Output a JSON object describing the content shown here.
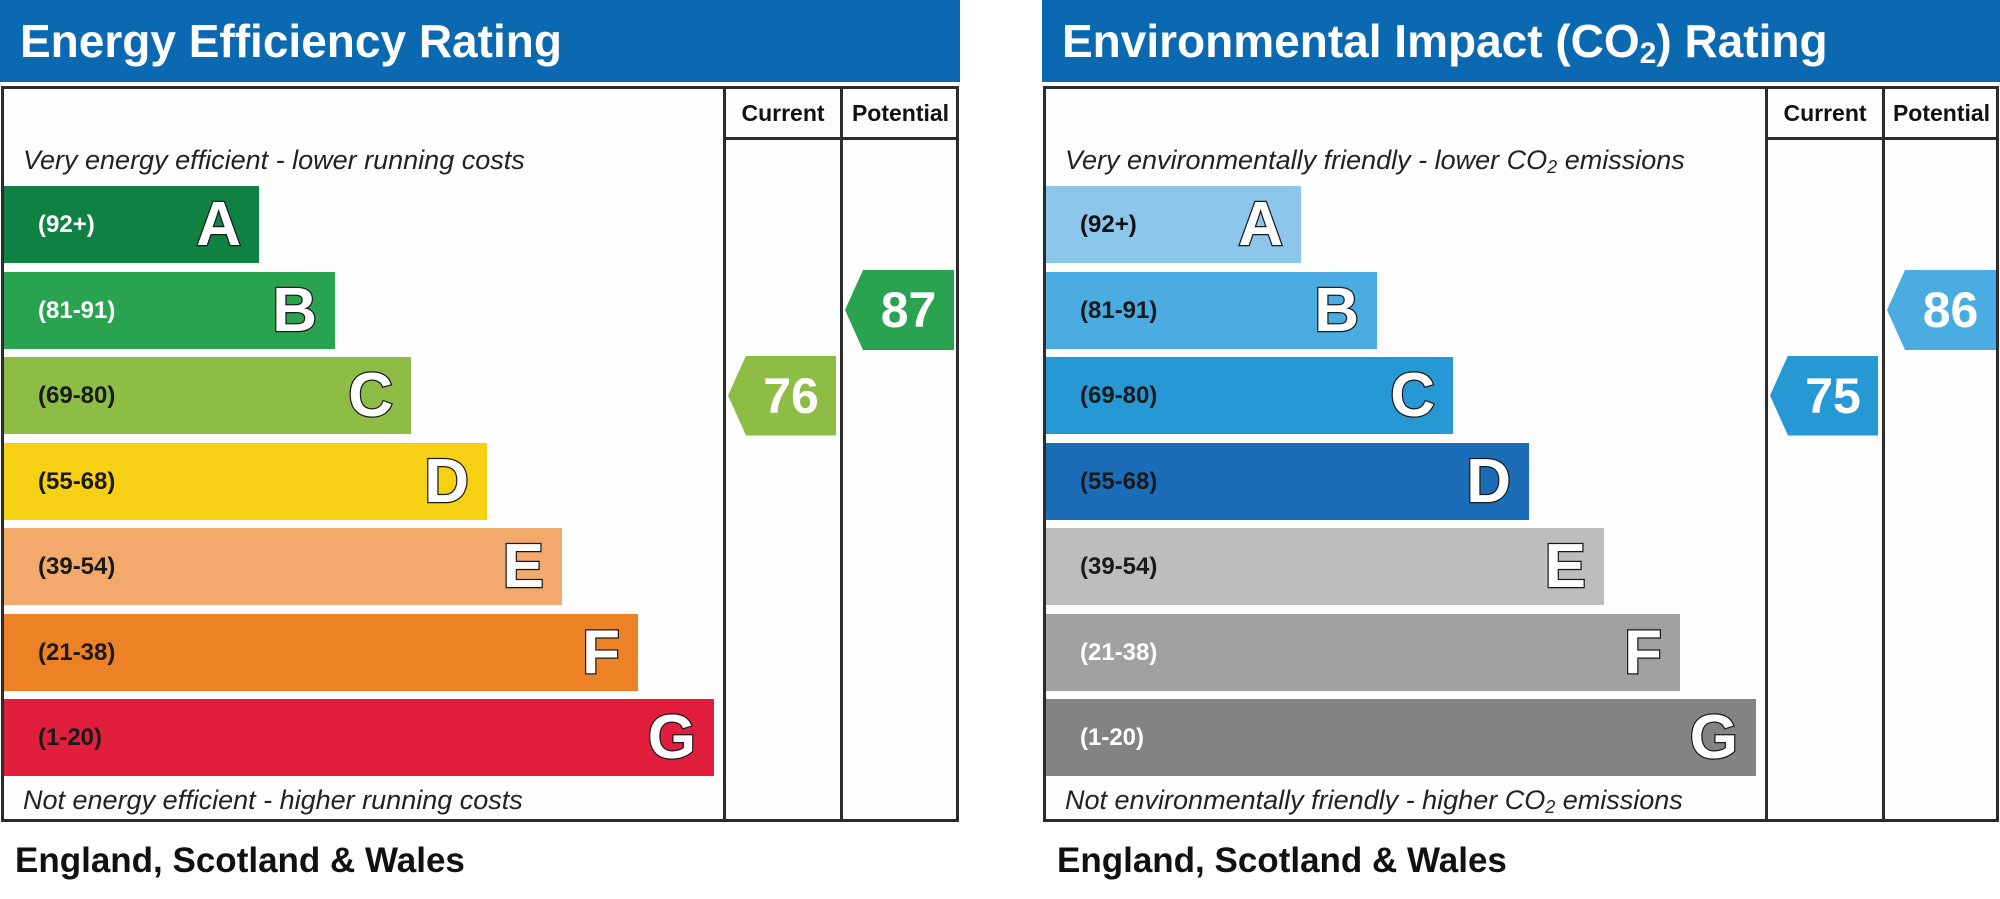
{
  "chart_data": [
    {
      "type": "bar",
      "title": "Energy Efficiency Rating",
      "column_headers": [
        "Current",
        "Potential"
      ],
      "top_caption": "Very energy efficient - lower running costs",
      "bottom_caption": "Not energy efficient - higher running costs",
      "region": "England, Scotland & Wales",
      "bands": [
        {
          "letter": "A",
          "range": "(92+)",
          "min": 92,
          "max": 100,
          "color": "#0f8142",
          "text_color": "#ffffff"
        },
        {
          "letter": "B",
          "range": "(81-91)",
          "min": 81,
          "max": 91,
          "color": "#2aa350",
          "text_color": "#ffffff"
        },
        {
          "letter": "C",
          "range": "(69-80)",
          "min": 69,
          "max": 80,
          "color": "#8dbd45",
          "text_color": "#1a1a1a"
        },
        {
          "letter": "D",
          "range": "(55-68)",
          "min": 55,
          "max": 68,
          "color": "#f6d012",
          "text_color": "#1a1a1a"
        },
        {
          "letter": "E",
          "range": "(39-54)",
          "min": 39,
          "max": 54,
          "color": "#f2a96b",
          "text_color": "#1a1a1a"
        },
        {
          "letter": "F",
          "range": "(21-38)",
          "min": 21,
          "max": 38,
          "color": "#ec8225",
          "text_color": "#1a1a1a"
        },
        {
          "letter": "G",
          "range": "(1-20)",
          "min": 1,
          "max": 20,
          "color": "#e11f3d",
          "text_color": "#1a1a1a"
        }
      ],
      "current": {
        "value": 76,
        "band": "C",
        "color": "#8dbd45"
      },
      "potential": {
        "value": 87,
        "band": "B",
        "color": "#2aa350"
      }
    },
    {
      "type": "bar",
      "title_main": "Environmental Impact (CO",
      "title_sub": "2",
      "title_end": ") Rating",
      "column_headers": [
        "Current",
        "Potential"
      ],
      "top_caption_main": "Very environmentally friendly - lower CO",
      "top_caption_sub": "2",
      "top_caption_end": " emissions",
      "bottom_caption_main": "Not environmentally friendly - higher CO",
      "bottom_caption_sub": "2",
      "bottom_caption_end": " emissions",
      "region": "England, Scotland & Wales",
      "bands": [
        {
          "letter": "A",
          "range": "(92+)",
          "min": 92,
          "max": 100,
          "color": "#8cc6eb",
          "text_color": "#111111"
        },
        {
          "letter": "B",
          "range": "(81-91)",
          "min": 81,
          "max": 91,
          "color": "#4aace0",
          "text_color": "#1a1a1a"
        },
        {
          "letter": "C",
          "range": "(69-80)",
          "min": 69,
          "max": 80,
          "color": "#2699d4",
          "text_color": "#1a1a1a"
        },
        {
          "letter": "D",
          "range": "(55-68)",
          "min": 55,
          "max": 68,
          "color": "#1a6db6",
          "text_color": "#1a1a1a"
        },
        {
          "letter": "E",
          "range": "(39-54)",
          "min": 39,
          "max": 54,
          "color": "#bdbdbb",
          "text_color": "#1a1a1a"
        },
        {
          "letter": "F",
          "range": "(21-38)",
          "min": 21,
          "max": 38,
          "color": "#a1a1a1",
          "text_color": "#ffffff"
        },
        {
          "letter": "G",
          "range": "(1-20)",
          "min": 1,
          "max": 20,
          "color": "#838383",
          "text_color": "#ffffff"
        }
      ],
      "current": {
        "value": 75,
        "band": "C",
        "color": "#2699d4"
      },
      "potential": {
        "value": 86,
        "band": "B",
        "color": "#4aace0"
      }
    }
  ]
}
